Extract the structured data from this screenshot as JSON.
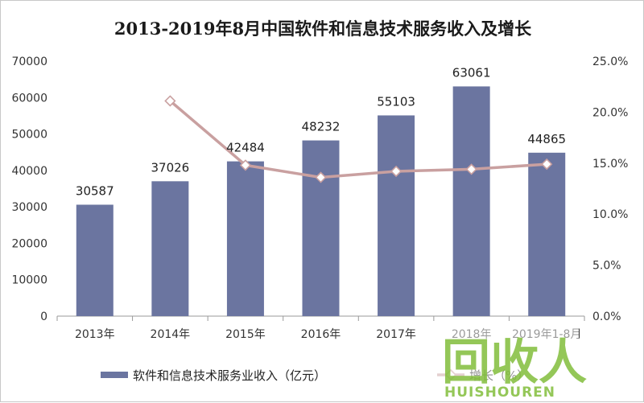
{
  "chart_data": {
    "type": "bar",
    "title": "2013-2019年8月中国软件和信息技术服务收入及增长",
    "categories": [
      "2013年",
      "2014年",
      "2015年",
      "2016年",
      "2017年",
      "2018年",
      "2019年1-8月"
    ],
    "series": [
      {
        "name": "软件和信息技术服务业收入（亿元）",
        "type": "bar",
        "axis": "left",
        "color": "#6b75a0",
        "values": [
          30587,
          37026,
          42484,
          48232,
          55103,
          63061,
          44865
        ]
      },
      {
        "name": "增长（%）",
        "type": "line",
        "axis": "right",
        "color": "#c9a0a0",
        "values": [
          null,
          21.1,
          14.8,
          13.6,
          14.2,
          14.4,
          14.9
        ]
      }
    ],
    "ylim": [
      0,
      70000
    ],
    "yticks": [
      "0",
      "10000",
      "20000",
      "30000",
      "40000",
      "50000",
      "60000",
      "70000"
    ],
    "y2lim": [
      0,
      25
    ],
    "y2ticks": [
      "0.0%",
      "5.0%",
      "10.0%",
      "15.0%",
      "20.0%",
      "25.0%"
    ],
    "grid": false,
    "legend_position": "bottom"
  },
  "watermark": {
    "text": "回收人",
    "subtext": "HUISHOUREN",
    "color": "#8bc34a"
  }
}
